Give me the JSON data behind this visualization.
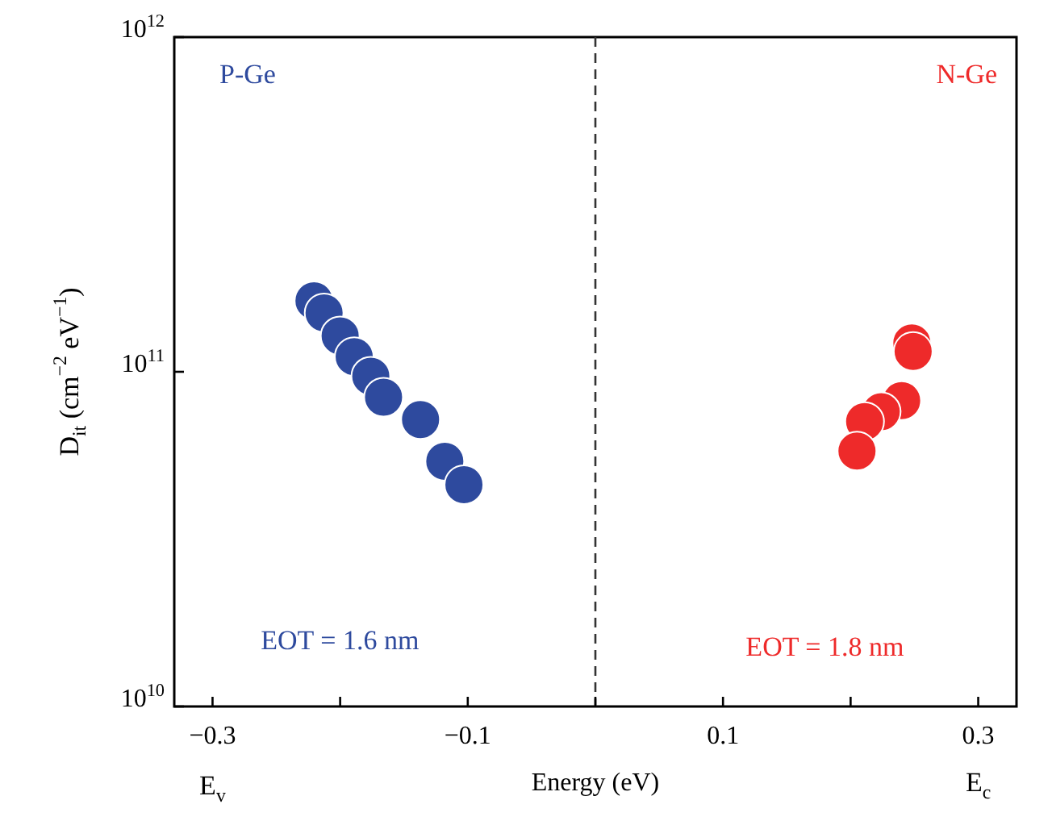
{
  "chart_data": {
    "type": "scatter",
    "xlabel": "Energy (eV)",
    "ylabel": "D$_{it}$ (cm$^{−2}$ eV$^{−1}$)",
    "series": [
      {
        "color": "#2e4a9e",
        "x": [
          -0.2205,
          -0.2126,
          -0.2,
          -0.189,
          -0.176,
          -0.166,
          -0.137,
          -0.118,
          -0.103
        ],
        "values": [
          163000000000.0,
          150000000000.0,
          128000000000.0,
          111000000000.0,
          97000000000.0,
          84000000000.0,
          72000000000.0,
          54000000000.0,
          46000000000.0
        ]
      },
      {
        "color": "#ee2a2a",
        "x": [
          0.248,
          0.249,
          0.24,
          0.224,
          0.211,
          0.205
        ],
        "values": [
          122000000000.0,
          115000000000.0,
          82000000000.0,
          76000000000.0,
          71000000000.0,
          58000000000.0
        ]
      }
    ],
    "marker": "circle",
    "log": "y",
    "xlim": [
      -0.33,
      0.33
    ],
    "xticks": [
      -0.3,
      {
        "value": -0.2,
        "label": null
      },
      -0.1,
      {
        "value": 0,
        "label": null
      },
      0.1,
      {
        "value": 0.2,
        "label": null
      },
      0.3
    ],
    "ylim": [
      10000000000.0,
      1000000000000.0
    ],
    "yticks": [
      {
        "value": 10000000000.0,
        "label": "10$^{10}$"
      },
      {
        "value": 100000000000.0,
        "label": "10$^{11}$"
      },
      {
        "value": 1000000000000.0,
        "label": "10$^{12}$"
      }
    ],
    "ref_lines": [
      {
        "axis": "x",
        "value": 0,
        "line_style": "dashed",
        "color": "#333333"
      }
    ],
    "annotations": [
      "P-Ge",
      "N-Ge",
      "EOT = 1.6 nm",
      "EOT = 1.8 nm",
      "E$_{v}$",
      "E$_{c}$"
    ],
    "grid": false,
    "legend": false
  }
}
